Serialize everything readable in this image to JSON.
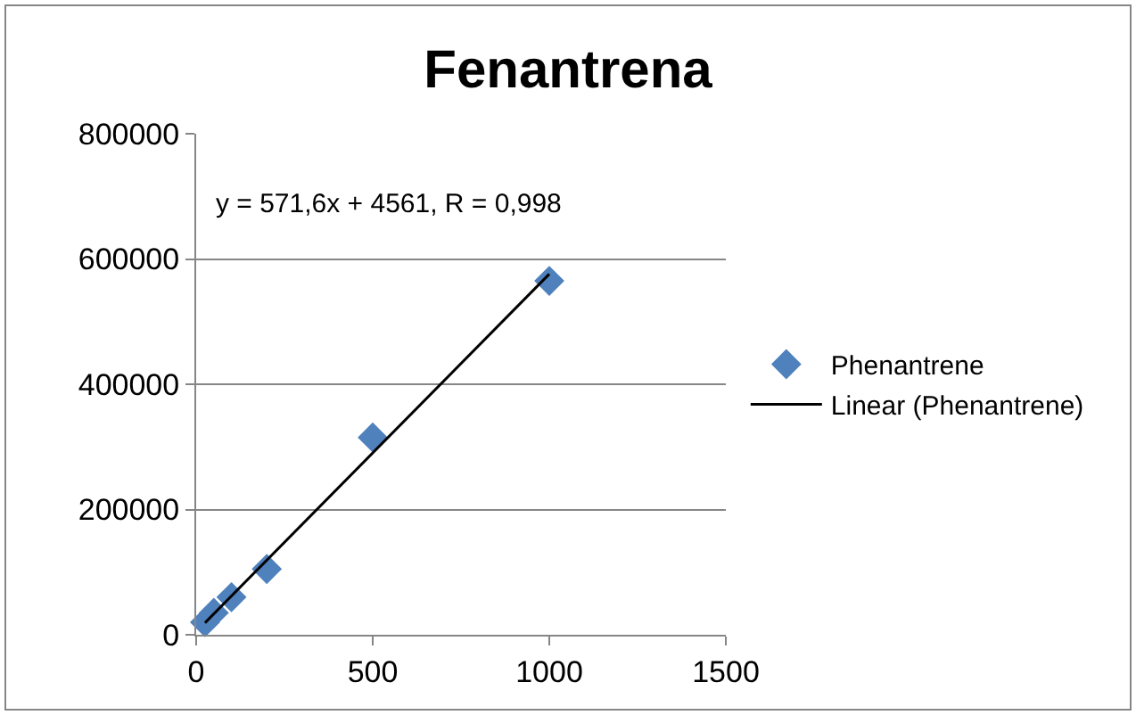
{
  "chart_data": {
    "type": "scatter",
    "title": "Fenantrena",
    "series": [
      {
        "name": "Phenantrene",
        "color": "#4f81bd",
        "marker": "diamond",
        "x": [
          25,
          50,
          100,
          200,
          500,
          1000
        ],
        "values": [
          20000,
          35000,
          60000,
          105000,
          315000,
          565000
        ]
      },
      {
        "name": "Linear (Phenantrene)",
        "type": "line",
        "color": "#000000",
        "marker": "none",
        "line_style": "solid",
        "x": [
          25,
          1000
        ],
        "values": [
          19000,
          576000
        ]
      }
    ],
    "annotations": [
      "y = 571,6x + 4561, R = 0,998"
    ],
    "xlim": [
      0,
      1500
    ],
    "xticks": [
      0,
      500,
      1000,
      1500
    ],
    "ylim": [
      0,
      800000
    ],
    "yticks": [
      0,
      200000,
      400000,
      600000,
      800000
    ],
    "grid": "y",
    "legend": "right"
  }
}
